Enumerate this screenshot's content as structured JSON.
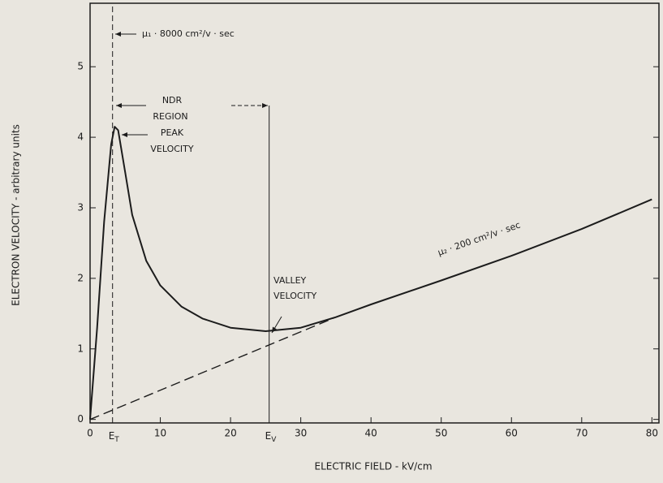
{
  "chart_data": {
    "type": "line",
    "x_label": "ELECTRIC FIELD - kV/cm",
    "y_label": "ELECTRON VELOCITY - arbitrary units",
    "x": [
      0,
      1,
      2,
      3,
      3.5,
      4,
      5,
      6,
      8,
      10,
      13,
      16,
      20,
      25,
      30,
      35,
      40,
      50,
      60,
      70,
      80
    ],
    "series": [
      {
        "values": [
          0,
          1.3,
          2.8,
          3.9,
          4.15,
          4.1,
          3.5,
          2.9,
          2.25,
          1.9,
          1.6,
          1.43,
          1.3,
          1.25,
          1.3,
          1.45,
          1.63,
          1.97,
          2.32,
          2.7,
          3.12
        ],
        "color": "#1c1c1c"
      }
    ],
    "mobility_line": {
      "x": [
        0,
        35
      ],
      "values": [
        0,
        1.45
      ]
    },
    "field_markers": [
      {
        "label": "E",
        "subscript": "T",
        "x": 3.2
      },
      {
        "label": "E",
        "subscript": "V",
        "x": 25.5
      }
    ],
    "annotations": {
      "mu1": "μ₁ · 8000 cm²/v · sec",
      "ndr": "NDR",
      "region": "REGION",
      "peak": "PEAK",
      "peak_velocity": "VELOCITY",
      "valley": "VALLEY",
      "valley_velocity": "VELOCITY",
      "mu2": "μ₂ · 200 cm²/v · sec"
    },
    "xlim": [
      0,
      81
    ],
    "ylim": [
      -0.05,
      5.9
    ],
    "xticks": [
      0,
      10,
      20,
      30,
      40,
      50,
      60,
      70,
      80
    ],
    "yticks": [
      0,
      1,
      2,
      3,
      4,
      5
    ]
  }
}
